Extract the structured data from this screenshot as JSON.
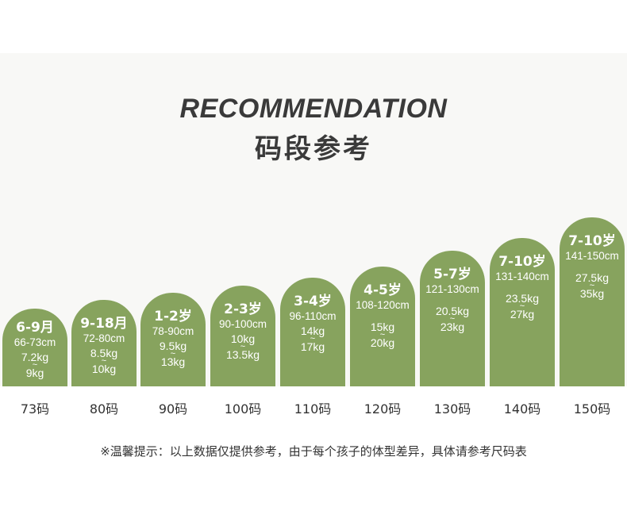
{
  "header": {
    "title_en": "RECOMMENDATION",
    "title_cn": "码段参考"
  },
  "colors": {
    "column": "#87a35e",
    "panel_background": "#f8f8f6",
    "text_dark": "#3a3a3a"
  },
  "sizes": [
    {
      "size": "73码",
      "age": "6-9月",
      "height": "66-73cm",
      "weight_min": "7.2kg",
      "weight_max": "9kg"
    },
    {
      "size": "80码",
      "age": "9-18月",
      "height": "72-80cm",
      "weight_min": "8.5kg",
      "weight_max": "10kg"
    },
    {
      "size": "90码",
      "age": "1-2岁",
      "height": "78-90cm",
      "weight_min": "9.5kg",
      "weight_max": "13kg"
    },
    {
      "size": "100码",
      "age": "2-3岁",
      "height": "90-100cm",
      "weight_min": "10kg",
      "weight_max": "13.5kg"
    },
    {
      "size": "110码",
      "age": "3-4岁",
      "height": "96-110cm",
      "weight_min": "14kg",
      "weight_max": "17kg"
    },
    {
      "size": "120码",
      "age": "4-5岁",
      "height": "108-120cm",
      "weight_min": "15kg",
      "weight_max": "20kg"
    },
    {
      "size": "130码",
      "age": "5-7岁",
      "height": "121-130cm",
      "weight_min": "20.5kg",
      "weight_max": "23kg"
    },
    {
      "size": "140码",
      "age": "7-10岁",
      "height": "131-140cm",
      "weight_min": "23.5kg",
      "weight_max": "27kg"
    },
    {
      "size": "150码",
      "age": "7-10岁",
      "height": "141-150cm",
      "weight_min": "27.5kg",
      "weight_max": "35kg"
    }
  ],
  "tilde": "~",
  "footer": {
    "note": "※温馨提示：以上数据仅提供参考，由于每个孩子的体型差异，具体请参考尺码表"
  }
}
